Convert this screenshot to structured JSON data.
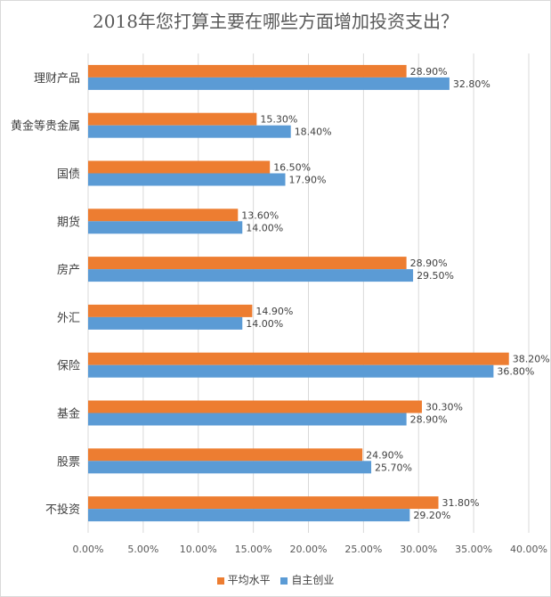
{
  "chart_data": {
    "type": "bar",
    "orientation": "horizontal",
    "title": "2018年您打算主要在哪些方面增加投资支出？",
    "categories": [
      "理财产品",
      "黄金等贵金属",
      "国债",
      "期货",
      "房产",
      "外汇",
      "保险",
      "基金",
      "股票",
      "不投资"
    ],
    "series": [
      {
        "name": "平均水平",
        "color": "#ED7D31",
        "values": [
          28.9,
          15.3,
          16.5,
          13.6,
          28.9,
          14.9,
          38.2,
          30.3,
          24.9,
          31.8
        ],
        "labels": [
          "28.90%",
          "15.30%",
          "16.50%",
          "13.60%",
          "28.90%",
          "14.90%",
          "38.20%",
          "30.30%",
          "24.90%",
          "31.80%"
        ]
      },
      {
        "name": "自主创业",
        "color": "#5B9BD5",
        "values": [
          32.8,
          18.4,
          17.9,
          14.0,
          29.5,
          14.0,
          36.8,
          28.9,
          25.7,
          29.2
        ],
        "labels": [
          "32.80%",
          "18.40%",
          "17.90%",
          "14.00%",
          "29.50%",
          "14.00%",
          "36.80%",
          "28.90%",
          "25.70%",
          "29.20%"
        ]
      }
    ],
    "xlim": [
      0,
      40
    ],
    "xticks": [
      "0.00%",
      "5.00%",
      "10.00%",
      "15.00%",
      "20.00%",
      "25.00%",
      "30.00%",
      "35.00%",
      "40.00%"
    ],
    "grid": true,
    "legend_position": "bottom"
  }
}
